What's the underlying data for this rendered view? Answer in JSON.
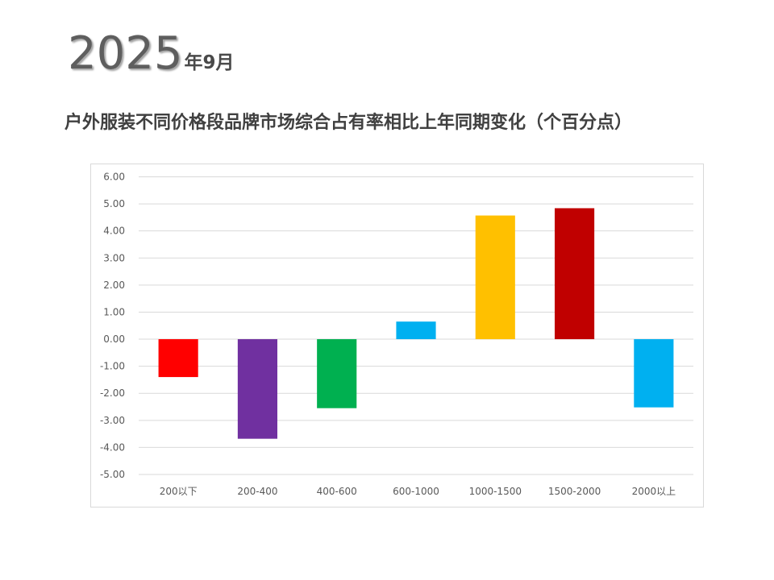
{
  "header": {
    "year": "2025",
    "month": "年9月",
    "title": "户外服装不同价格段品牌市场综合占有率相比上年同期变化（个百分点）"
  },
  "chart_data": {
    "type": "bar",
    "title": "",
    "categories": [
      "200以下",
      "200-400",
      "400-600",
      "600-1000",
      "1000-1500",
      "1500-2000",
      "2000以上"
    ],
    "values": [
      -1.4,
      -3.68,
      -2.55,
      0.65,
      4.57,
      4.84,
      -2.52
    ],
    "colors": [
      "#FF0000",
      "#7030A0",
      "#00B050",
      "#00B0F0",
      "#FFC000",
      "#C00000",
      "#00B0F0"
    ],
    "ylim": [
      -5,
      6
    ],
    "yticks": [
      "6.00",
      "5.00",
      "4.00",
      "3.00",
      "2.00",
      "1.00",
      "0.00",
      "-1.00",
      "-2.00",
      "-3.00",
      "-4.00",
      "-5.00"
    ],
    "grid": true,
    "gridColor": "#D9D9D9"
  }
}
